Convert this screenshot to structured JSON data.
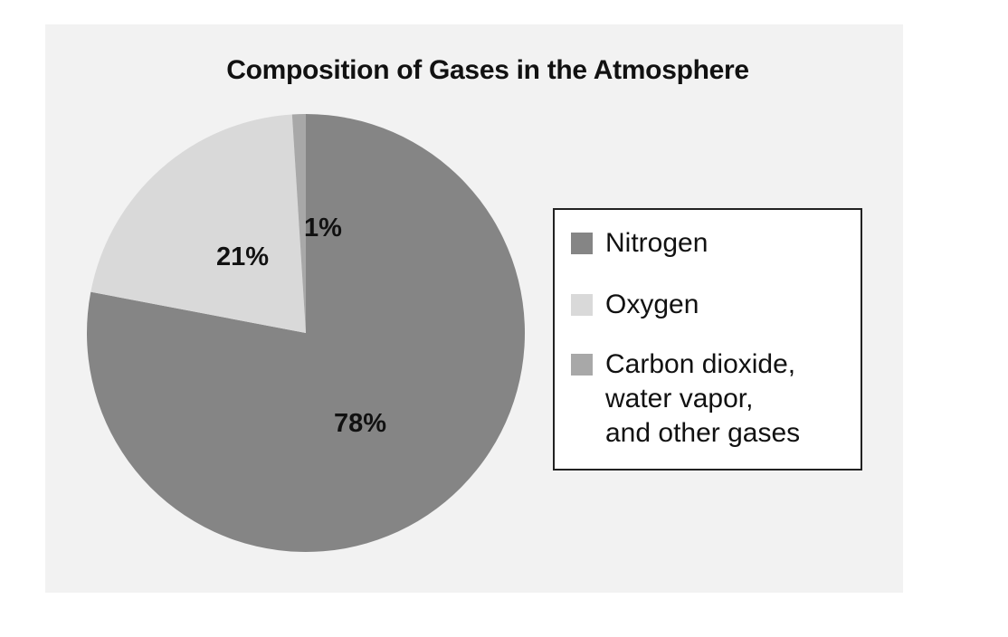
{
  "chart_data": {
    "type": "pie",
    "title": "Composition of Gases in the Atmosphere",
    "slices": [
      {
        "label": "Nitrogen",
        "value": 78,
        "value_label": "78%",
        "color": "#858585"
      },
      {
        "label": "Oxygen",
        "value": 21,
        "value_label": "21%",
        "color": "#d9d9d9"
      },
      {
        "label": "Carbon dioxide,\nwater vapor,\nand other gases",
        "value": 1,
        "value_label": "1%",
        "color": "#a8a8a8"
      }
    ],
    "legend_position": "right",
    "start_angle": "top, clockwise"
  }
}
